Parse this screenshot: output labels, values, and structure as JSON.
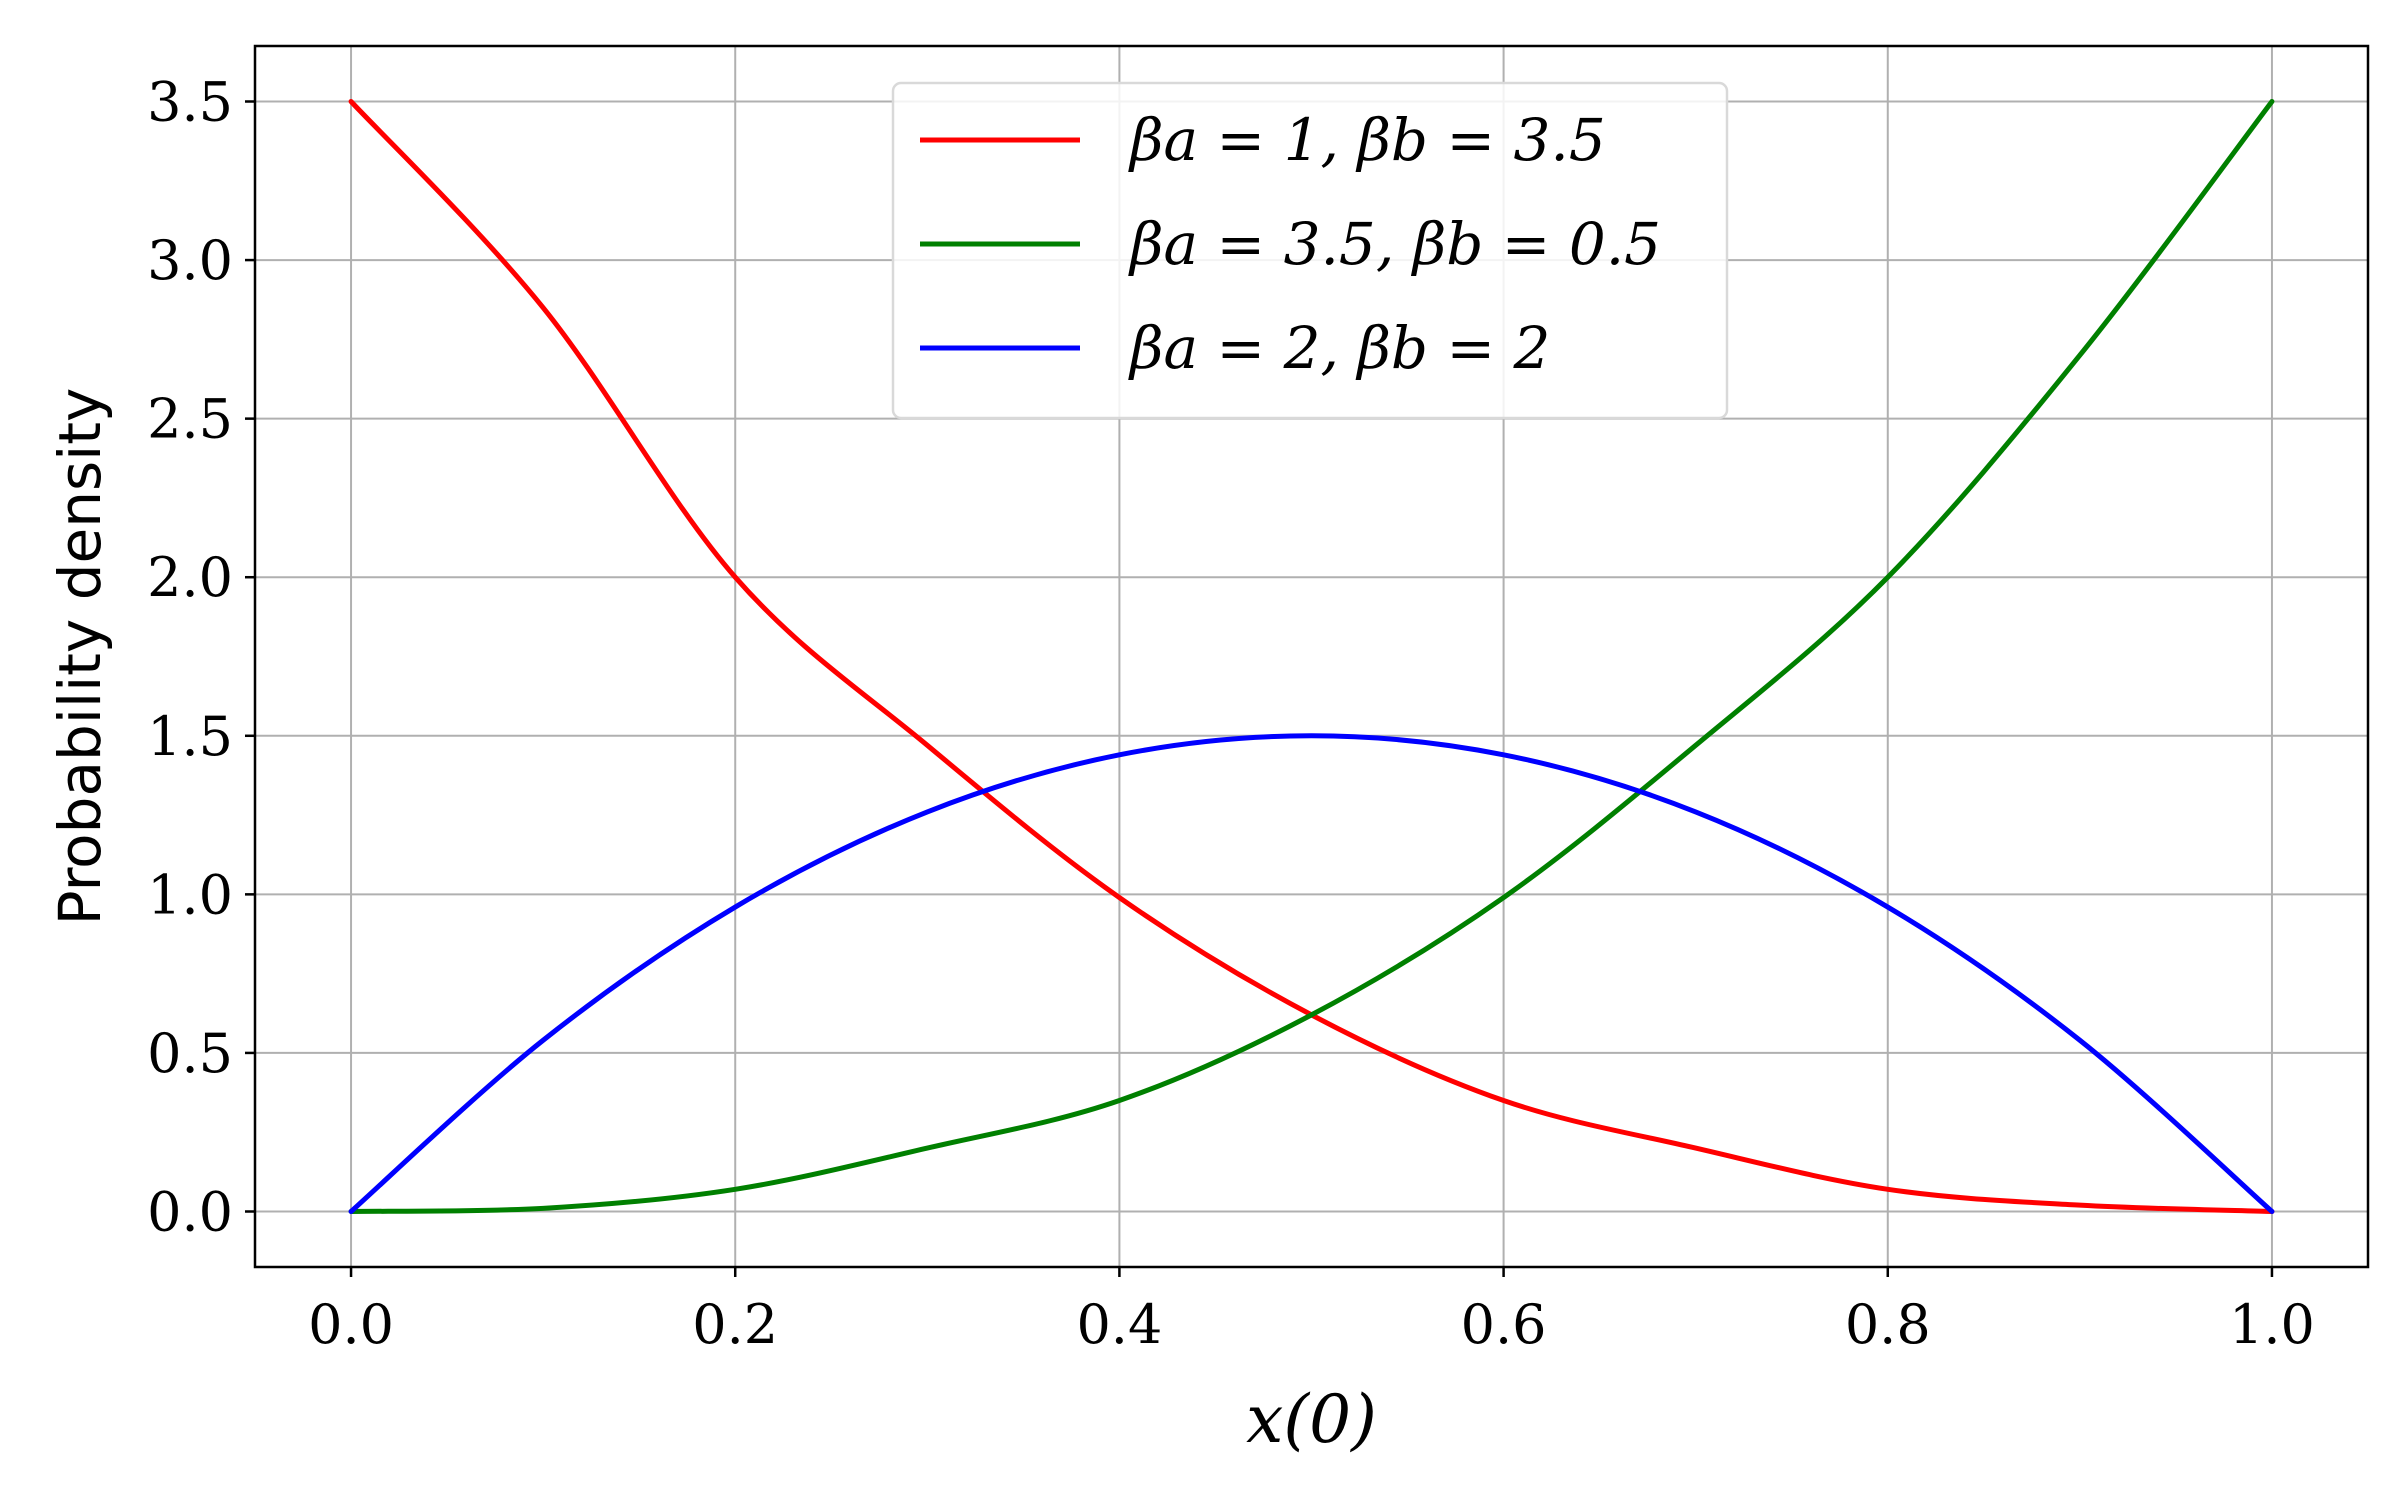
{
  "chart_data": {
    "type": "line",
    "title": "",
    "xlabel": "x(0)",
    "ylabel": "Probability density",
    "xlim": [
      -0.05,
      1.05
    ],
    "ylim": [
      -0.175,
      3.675
    ],
    "xticks": [
      0.0,
      0.2,
      0.4,
      0.6,
      0.8,
      1.0
    ],
    "xtick_labels": [
      "0.0",
      "0.2",
      "0.4",
      "0.6",
      "0.8",
      "1.0"
    ],
    "yticks": [
      0.0,
      0.5,
      1.0,
      1.5,
      2.0,
      2.5,
      3.0,
      3.5
    ],
    "ytick_labels": [
      "0.0",
      "0.5",
      "1.0",
      "1.5",
      "2.0",
      "2.5",
      "3.0",
      "3.5"
    ],
    "grid": true,
    "legend_position": "top-center",
    "x": [
      0.0,
      0.1,
      0.2,
      0.3,
      0.4,
      0.5,
      0.6,
      0.7,
      0.8,
      0.9,
      1.0
    ],
    "series": [
      {
        "name": "βa = 1,  βb = 3.5",
        "color": "#ff0000",
        "values": [
          3.5,
          2.85,
          2.0,
          1.47,
          0.99,
          0.62,
          0.35,
          0.2,
          0.07,
          0.02,
          0.0
        ]
      },
      {
        "name": "βa = 3.5,  βb = 0.5",
        "color": "#008000",
        "values": [
          0.0,
          0.01,
          0.07,
          0.2,
          0.35,
          0.62,
          0.99,
          1.47,
          2.0,
          2.7,
          3.5
        ]
      },
      {
        "name": "βa = 2,  βb = 2",
        "color": "#0000ff",
        "values": [
          0.0,
          0.54,
          0.96,
          1.26,
          1.44,
          1.5,
          1.44,
          1.26,
          0.96,
          0.54,
          0.0
        ]
      }
    ]
  }
}
